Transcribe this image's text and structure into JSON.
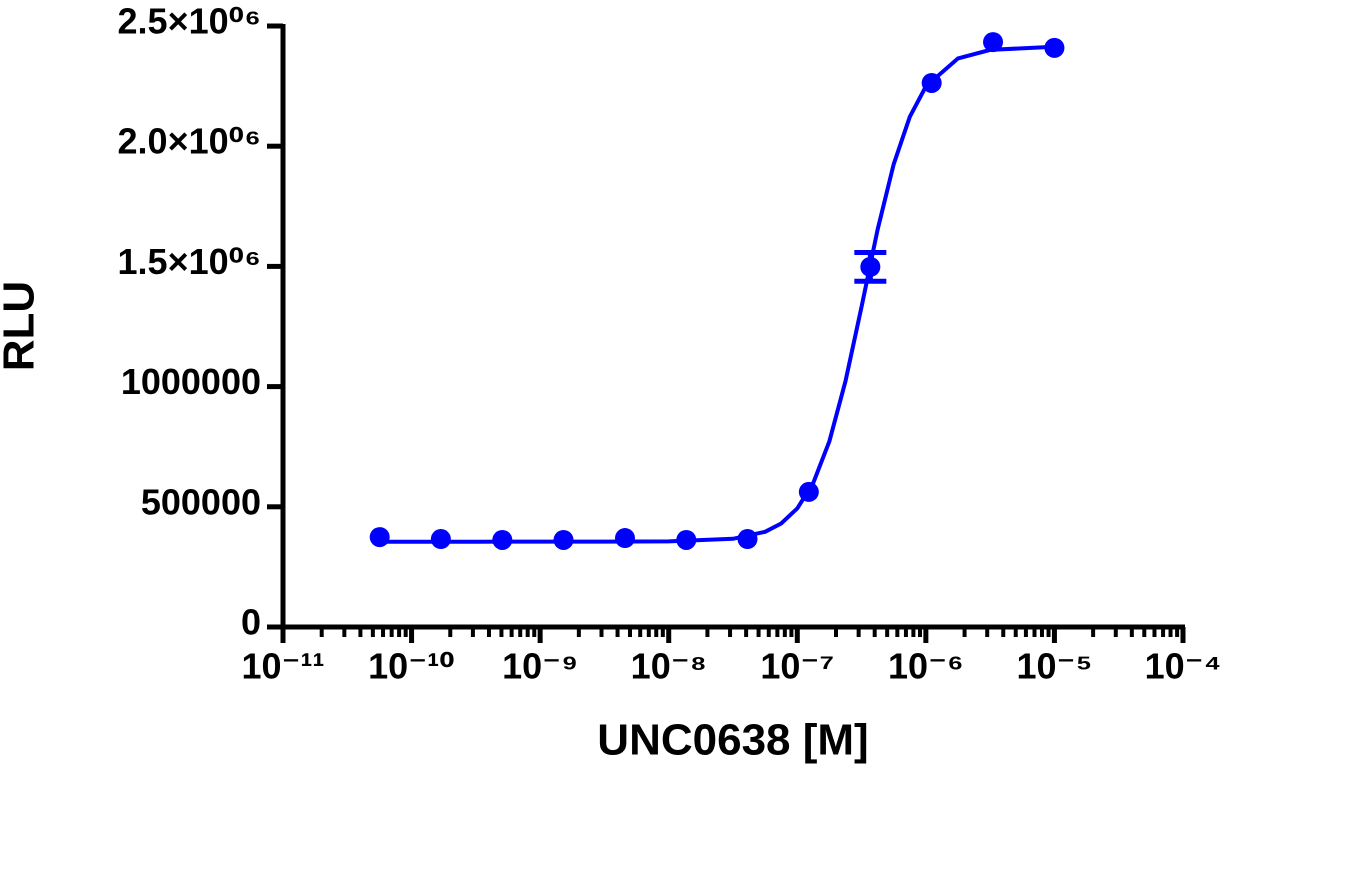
{
  "chart_data": {
    "type": "scatter",
    "x_label": "UNC0638 [M]",
    "y_label": "RLU",
    "x_log": true,
    "xlim": [
      1e-11,
      0.0001
    ],
    "xticks": [
      {
        "value": 1e-11,
        "label": "10⁻¹¹"
      },
      {
        "value": 1e-10,
        "label": "10⁻¹⁰"
      },
      {
        "value": 1e-09,
        "label": "10⁻⁹"
      },
      {
        "value": 1e-08,
        "label": "10⁻⁸"
      },
      {
        "value": 1e-07,
        "label": "10⁻⁷"
      },
      {
        "value": 1e-06,
        "label": "10⁻⁶"
      },
      {
        "value": 1e-05,
        "label": "10⁻⁵"
      },
      {
        "value": 0.0001,
        "label": "10⁻⁴"
      }
    ],
    "ylim": [
      0,
      2500000
    ],
    "yticks": [
      0,
      500000,
      1000000,
      {
        "value": 1500000,
        "label": "1.5×10⁰⁶"
      },
      {
        "value": 2000000,
        "label": "2.0×10⁰⁶"
      },
      {
        "value": 2500000,
        "label": "2.5×10⁰⁶"
      }
    ],
    "color": "#0000ff",
    "x": [
      5.65e-11,
      1.69e-10,
      5.08e-10,
      1.52e-09,
      4.57e-09,
      1.37e-08,
      4.1e-08,
      1.23e-07,
      3.7e-07,
      1.11e-06,
      3.33e-06,
      1e-05
    ],
    "values": [
      374000,
      366000,
      362000,
      362000,
      370000,
      362000,
      366000,
      562000,
      1498000,
      2263000,
      2433000,
      2409000
    ],
    "errors": [
      null,
      null,
      null,
      null,
      null,
      null,
      null,
      null,
      60000,
      null,
      null,
      null
    ],
    "curve": {
      "x": [
        5.623e-11,
        3.162e-10,
        3.162e-09,
        1e-08,
        3.162e-08,
        5.623e-08,
        7.499e-08,
        1e-07,
        1.334e-07,
        1.778e-07,
        2.371e-07,
        3.162e-07,
        4.217e-07,
        5.623e-07,
        7.499e-07,
        1e-06,
        1.778e-06,
        3.162e-06,
        1e-05
      ],
      "y": [
        355000,
        355000,
        355100,
        355900,
        366700,
        395900,
        430700,
        493300,
        600500,
        772800,
        1023000,
        1332700,
        1653000,
        1925100,
        2122300,
        2248600,
        2365200,
        2400700,
        2413900
      ]
    }
  }
}
